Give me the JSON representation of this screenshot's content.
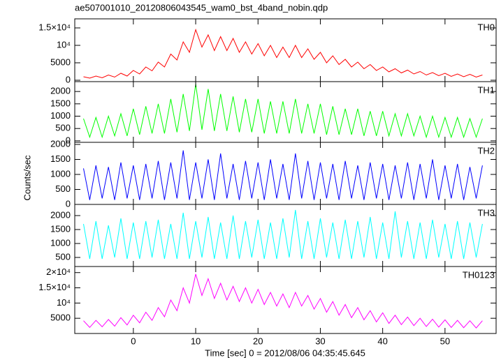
{
  "chart_data": {
    "type": "line",
    "title": "ae507001010_20120806043545_wam0_bst_4band_nobin.qdp",
    "x_label": "Time [sec] 0 = 2012/08/06 04:35:45.645",
    "y_label": "Counts/sec",
    "xlim": [
      -9.4,
      58.2
    ],
    "xticks": [
      0,
      10,
      20,
      30,
      40,
      50
    ],
    "x": [
      -8,
      -7,
      -6,
      -5,
      -4,
      -3,
      -2,
      -1,
      0,
      1,
      2,
      3,
      4,
      5,
      6,
      7,
      8,
      9,
      10,
      11,
      12,
      13,
      14,
      15,
      16,
      17,
      18,
      19,
      20,
      21,
      22,
      23,
      24,
      25,
      26,
      27,
      28,
      29,
      30,
      31,
      32,
      33,
      34,
      35,
      36,
      37,
      38,
      39,
      40,
      41,
      42,
      43,
      44,
      45,
      46,
      47,
      48,
      49,
      50,
      51,
      52,
      53,
      54,
      55,
      56
    ],
    "panels": [
      {
        "name": "TH0",
        "color": "#ff0000",
        "ylim": [
          -400,
          17600
        ],
        "yticks": [
          0,
          5000,
          {
            "value": 10000,
            "label": "10⁴"
          },
          {
            "value": 15000,
            "label": "1.5×10⁴"
          }
        ],
        "values": [
          1000,
          600,
          1200,
          700,
          1500,
          900,
          2000,
          1200,
          2800,
          1800,
          3800,
          2700,
          5200,
          3800,
          7500,
          5800,
          11000,
          8000,
          14500,
          9500,
          13000,
          8500,
          12500,
          8500,
          12000,
          8000,
          11000,
          7500,
          10500,
          7000,
          10000,
          6500,
          9500,
          6500,
          10000,
          6500,
          9000,
          6000,
          8000,
          5000,
          7000,
          4500,
          6000,
          3800,
          5200,
          3300,
          4500,
          2800,
          3800,
          2400,
          3300,
          2100,
          2900,
          1800,
          2500,
          1500,
          2200,
          1300,
          2000,
          1100,
          1800,
          1000,
          1700,
          900,
          1500
        ]
      },
      {
        "name": "TH1",
        "color": "#00ff00",
        "ylim": [
          -60,
          2400
        ],
        "yticks": [
          0,
          500,
          1000,
          1500,
          2000
        ],
        "values": [
          900,
          150,
          950,
          150,
          1000,
          200,
          1100,
          200,
          1300,
          250,
          1400,
          300,
          1500,
          300,
          1700,
          350,
          1900,
          400,
          2300,
          450,
          2100,
          400,
          1900,
          400,
          1800,
          350,
          1700,
          350,
          1700,
          300,
          1600,
          300,
          1600,
          300,
          1700,
          300,
          1500,
          300,
          1500,
          250,
          1400,
          250,
          1300,
          250,
          1300,
          200,
          1200,
          200,
          1200,
          200,
          1100,
          200,
          1100,
          200,
          1000,
          150,
          1000,
          150,
          950,
          150,
          950,
          150,
          900,
          150,
          900
        ]
      },
      {
        "name": "TH2",
        "color": "#0000ff",
        "ylim": [
          0,
          2070
        ],
        "yticks": [
          0,
          500,
          1000,
          1500,
          2000
        ],
        "values": [
          1200,
          150,
          1300,
          200,
          1250,
          150,
          1400,
          200,
          1300,
          150,
          1350,
          200,
          1450,
          150,
          1400,
          200,
          1800,
          150,
          1400,
          200,
          1500,
          150,
          1700,
          200,
          1350,
          150,
          1450,
          200,
          1400,
          150,
          1500,
          200,
          1350,
          150,
          1700,
          200,
          1450,
          150,
          1400,
          200,
          1350,
          150,
          1450,
          200,
          1300,
          150,
          1400,
          200,
          1350,
          150,
          1300,
          200,
          1400,
          150,
          1350,
          200,
          1500,
          150,
          1300,
          200,
          1350,
          150,
          1250,
          200,
          1300
        ]
      },
      {
        "name": "TH3",
        "color": "#00ffff",
        "ylim": [
          175,
          2400
        ],
        "yticks": [
          500,
          1000,
          1500,
          2000
        ],
        "values": [
          1700,
          450,
          1800,
          450,
          1650,
          500,
          1900,
          450,
          1750,
          450,
          1800,
          500,
          1850,
          450,
          1700,
          450,
          2100,
          450,
          1800,
          500,
          1950,
          450,
          1750,
          450,
          2000,
          450,
          1800,
          500,
          1850,
          450,
          1750,
          450,
          1900,
          500,
          2200,
          450,
          1800,
          450,
          1900,
          500,
          1750,
          450,
          1850,
          450,
          1800,
          500,
          1950,
          450,
          1750,
          450,
          2150,
          500,
          1800,
          450,
          1750,
          450,
          1850,
          500,
          1700,
          450,
          1800,
          450,
          1750,
          500,
          1700
        ]
      },
      {
        "name": "TH0123",
        "color": "#ff00ff",
        "ylim": [
          0,
          22000
        ],
        "yticks": [
          5000,
          {
            "value": 10000,
            "label": "10⁴"
          },
          {
            "value": 15000,
            "label": "1.5×10⁴"
          },
          {
            "value": 20000,
            "label": "2×10⁴"
          }
        ],
        "values": [
          4200,
          2000,
          4300,
          2200,
          4600,
          2400,
          5200,
          2800,
          6000,
          3500,
          7000,
          4300,
          8500,
          5500,
          11000,
          7500,
          15000,
          10000,
          19500,
          12500,
          18000,
          11500,
          16500,
          11000,
          15500,
          10500,
          15000,
          10000,
          14500,
          9500,
          13500,
          9000,
          13000,
          8500,
          13500,
          9000,
          12500,
          8000,
          11500,
          7000,
          10500,
          6000,
          9500,
          5200,
          8500,
          4500,
          7500,
          3800,
          6800,
          3300,
          6000,
          2900,
          5400,
          2600,
          5000,
          2300,
          4700,
          2100,
          4500,
          2000,
          4300,
          1900,
          4200,
          1800,
          4200
        ]
      }
    ]
  }
}
